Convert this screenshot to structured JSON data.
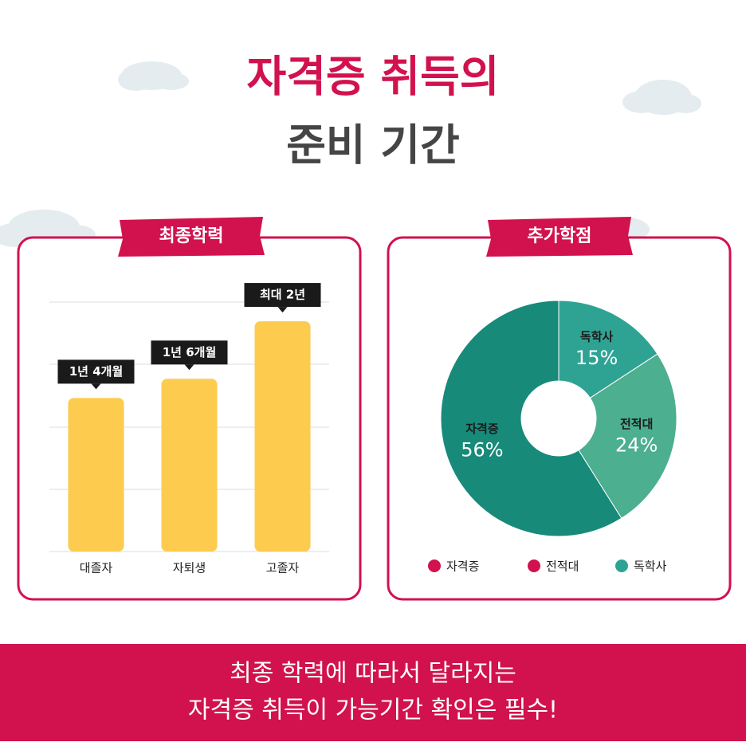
{
  "header": {
    "title_line_1": "자격증 취득의",
    "title_line_2": "준비 기간"
  },
  "chart_data": [
    {
      "type": "bar",
      "title": "최종학력",
      "categories": [
        "대졸자",
        "자퇴생",
        "고졸자"
      ],
      "values": [
        16,
        18,
        24
      ],
      "value_labels": [
        "1년 4개월",
        "1년 6개월",
        "최대 2년"
      ],
      "color": "#fdcb4d",
      "ylim": [
        0,
        26
      ]
    },
    {
      "type": "pie",
      "title": "추가학점",
      "categories": [
        "자격증",
        "전적대",
        "독학사"
      ],
      "values": [
        56,
        24,
        15
      ],
      "value_labels": [
        "56%",
        "24%",
        "15%"
      ],
      "colors": [
        "#178a7a",
        "#4caf8f",
        "#2fa393"
      ],
      "legend_colors": [
        "#d1124e",
        "#d1124e",
        "#2fa393"
      ]
    }
  ],
  "footer": {
    "line_1": "최종 학력에 따라서 달라지는",
    "line_2": "자격증 취득이 가능기간 확인은 필수!"
  }
}
